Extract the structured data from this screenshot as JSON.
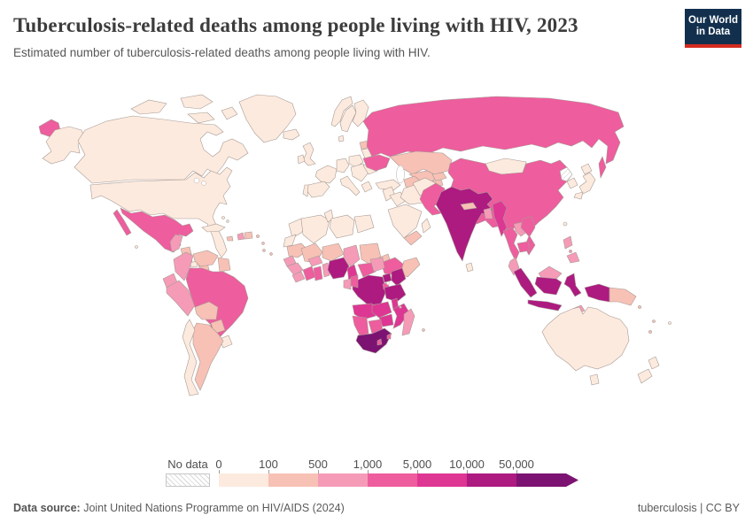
{
  "header": {
    "title": "Tuberculosis-related deaths among people living with HIV, 2023",
    "subtitle": "Estimated number of tuberculosis-related deaths among people living with HIV.",
    "logo": {
      "line1": "Our World",
      "line2": "in Data",
      "bg_color": "#12304e",
      "stripe_color": "#d42b20"
    }
  },
  "legend": {
    "no_data_label": "No data"
  },
  "footer": {
    "source_prefix": "Data source:",
    "source_text": " Joint United Nations Programme on HIV/AIDS (2024)",
    "right_text": "tuberculosis | CC BY"
  },
  "map": {
    "border_color": "#a79b94",
    "ocean_color": "#ffffff",
    "nodata_hatch_color": "#cfcfcf"
  },
  "chart_data": {
    "type": "choropleth",
    "title": "Tuberculosis-related deaths among people living with HIV, 2023",
    "subtitle": "Estimated number of tuberculosis-related deaths among people living with HIV.",
    "year": "2023",
    "legend_position": "bottom",
    "legend_bins": [
      {
        "label": "0",
        "range": "0-100",
        "color": "#fdeade"
      },
      {
        "label": "100",
        "range": "100-500",
        "color": "#f7c1b6"
      },
      {
        "label": "500",
        "range": "500-1,000",
        "color": "#f59bb8"
      },
      {
        "label": "1,000",
        "range": "1,000-5,000",
        "color": "#ee5d9e"
      },
      {
        "label": "5,000",
        "range": "5,000-10,000",
        "color": "#de3693"
      },
      {
        "label": "10,000",
        "range": "10,000-50,000",
        "color": "#ad1a80"
      },
      {
        "label": "50,000",
        "range": "50,000+",
        "color": "#7c1372"
      }
    ],
    "region_bins": {
      "canada": 0,
      "usa": 0,
      "alaska": 0,
      "greenland": 0,
      "iceland": 0,
      "bahamas": 0,
      "cuba": 0,
      "jamaica": 1,
      "haiti": 2,
      "dominican-republic": 1,
      "puerto-rico": 1,
      "lesser-antilles": 1,
      "mexico": 3,
      "baja-california": 3,
      "guatemala": 2,
      "honduras": 1,
      "nicaragua": 1,
      "costa-rica": 0,
      "panama": 1,
      "colombia": 2,
      "venezuela": 1,
      "guyana-suriname": 1,
      "ecuador": 2,
      "peru": 2,
      "brazil": 3,
      "bolivia": 1,
      "paraguay": 1,
      "uruguay": 0,
      "argentina": 1,
      "chile": 0,
      "galapagos": 0,
      "uk": 0,
      "ireland": 0,
      "france": 0,
      "spain": 0,
      "portugal": 0,
      "germany": 0,
      "poland": 0,
      "italy": 0,
      "central-europe": 0,
      "greece": 0,
      "romania": 0,
      "belarus": 0,
      "baltics": 1,
      "ukraine": 3,
      "turkey": 0,
      "norway": 0,
      "sweden": 0,
      "finland": 0,
      "denmark": 0,
      "russia": 3,
      "chukotka": 3,
      "sakhalin": 3,
      "kazakhstan": 1,
      "uzbekistan": 1,
      "turkmenistan": 1,
      "kyrgyzstan": 1,
      "tajikistan": 1,
      "mongolia": 0,
      "china": 3,
      "south-korea": 0,
      "japan": 0,
      "taiwan": 0,
      "levant": 0,
      "iraq": 0,
      "iran": 0,
      "saudi-arabia": 0,
      "yemen": 1,
      "oman": 0,
      "afghanistan": 0,
      "pakistan": 3,
      "india": 5,
      "nepal": 1,
      "bangladesh": 2,
      "sri-lanka": 0,
      "myanmar": 4,
      "thailand": 3,
      "laos": 2,
      "vietnam": 3,
      "cambodia": 3,
      "malaysia": 2,
      "malaysia-borneo": 2,
      "philippines-luzon": 2,
      "philippines-mindanao": 2,
      "philippines-visayas": 2,
      "sumatra": 5,
      "java": 5,
      "kalimantan": 5,
      "sulawesi": 5,
      "west-papua": 5,
      "papua-new-guinea": 1,
      "timor": 2,
      "morocco": 0,
      "western-sahara": 0,
      "algeria": 0,
      "tunisia": 0,
      "libya": 0,
      "egypt": 0,
      "mauritania": 1,
      "mali": 1,
      "niger": 1,
      "chad": 2,
      "sudan": 1,
      "eritrea": 1,
      "ethiopia": 3,
      "somalia": 1,
      "senegal": 2,
      "guinea": 2,
      "sierra-leone": 2,
      "cote-divoire": 3,
      "ghana": 3,
      "burkina-faso": 2,
      "togo-benin": 2,
      "nigeria": 5,
      "cameroon": 4,
      "central-african-republic": 3,
      "south-sudan": 2,
      "drc": 5,
      "congo": 3,
      "gabon": 2,
      "equatorial-guinea": 1,
      "uganda": 5,
      "kenya": 5,
      "rwanda-burundi": 3,
      "tanzania": 5,
      "angola": 4,
      "zambia": 4,
      "malawi": 4,
      "mozambique": 4,
      "zimbabwe": 4,
      "botswana": 3,
      "namibia": 3,
      "south-africa": 6,
      "lesotho": 3,
      "eswatini": 3,
      "madagascar": 2,
      "comoros": 1,
      "mauritius": 1,
      "cape-verde": 1,
      "australia": 0,
      "tasmania": 0,
      "new-zealand-north": 0,
      "new-zealand-south": 0,
      "solomon-islands": 1,
      "vanuatu": 1,
      "new-caledonia": 1,
      "fiji": 0
    },
    "no_data_regions": [
      "north-korea"
    ]
  }
}
